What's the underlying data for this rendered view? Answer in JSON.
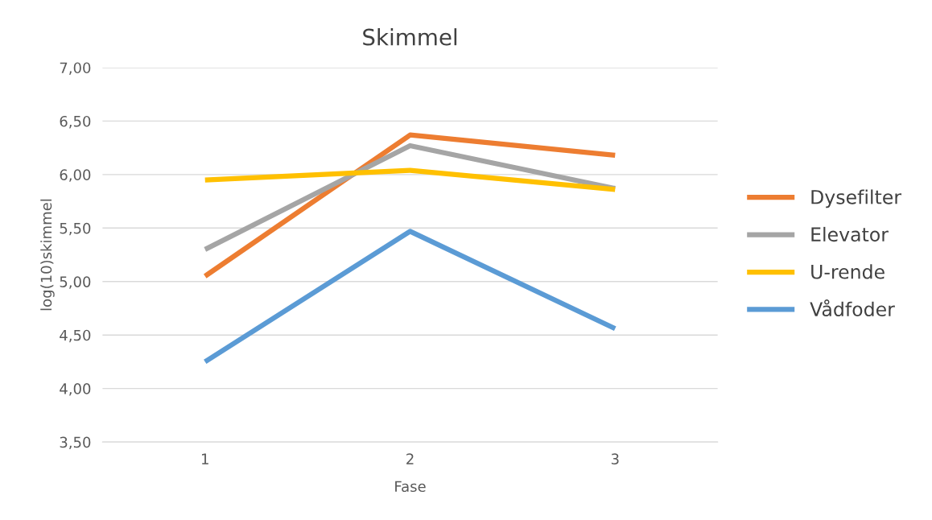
{
  "chart_data": {
    "type": "line",
    "title": "Skimmel",
    "xlabel": "Fase",
    "ylabel": "log(10)skimmel",
    "categories": [
      "1",
      "2",
      "3"
    ],
    "series": [
      {
        "name": "Dysefilter",
        "color": "#ed7d31",
        "values": [
          5.05,
          6.37,
          6.18
        ]
      },
      {
        "name": "Elevator",
        "color": "#a5a5a5",
        "values": [
          5.3,
          6.27,
          5.87
        ]
      },
      {
        "name": "U-rende",
        "color": "#ffc000",
        "values": [
          5.95,
          6.04,
          5.86
        ]
      },
      {
        "name": "Vådfoder",
        "color": "#5b9bd5",
        "values": [
          4.25,
          5.47,
          4.56
        ]
      }
    ],
    "ylim": [
      3.5,
      7.0
    ],
    "yticks": [
      {
        "value": 3.5,
        "label": "3,50"
      },
      {
        "value": 4.0,
        "label": "4,00"
      },
      {
        "value": 4.5,
        "label": "4,50"
      },
      {
        "value": 5.0,
        "label": "5,00"
      },
      {
        "value": 5.5,
        "label": "5,50"
      },
      {
        "value": 6.0,
        "label": "6,00"
      },
      {
        "value": 6.5,
        "label": "6,50"
      },
      {
        "value": 7.0,
        "label": "7,00"
      }
    ],
    "grid": "y",
    "legend": "right",
    "marker": "none",
    "line_style": "solid"
  }
}
